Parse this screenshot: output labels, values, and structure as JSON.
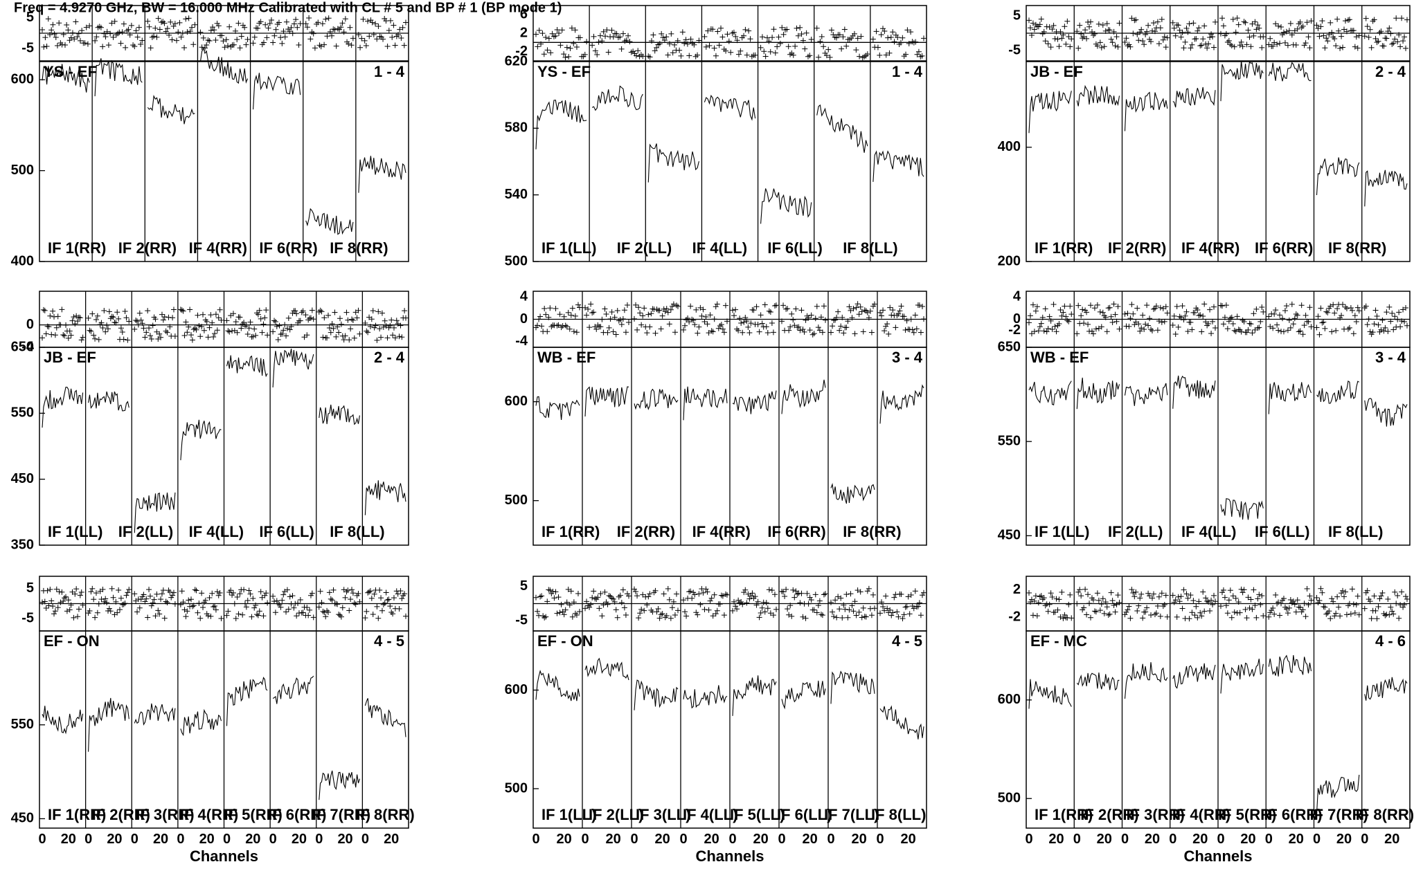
{
  "header": "Freq = 4.9270 GHz, BW = 16.000 MHz  Calibrated with CL # 5 and BP # 1  (BP mode 1)",
  "xlabel": "Channels",
  "x_tick_labels": [
    "0",
    "20"
  ],
  "n_channels": 32,
  "chart_data": [
    {
      "type": "line",
      "panel": 1,
      "baseline": "YS - EF",
      "scan": "1 - 4",
      "resid_ticks": [
        "5",
        "-5"
      ],
      "resid_range": [
        -9,
        9
      ],
      "amp_ticks": [
        "400",
        "500",
        "600"
      ],
      "amp_range": [
        400,
        620
      ],
      "if_labels": [
        "IF 1(RR)",
        "IF 2(RR)",
        "IF 4(RR)",
        "IF 6(RR)",
        "IF 8(RR)"
      ],
      "series": [
        {
          "values": [
            605,
            604,
            608,
            600,
            596
          ]
        },
        {
          "values": [
            615,
            612,
            608,
            606,
            604
          ]
        },
        {
          "values": [
            575,
            570,
            566,
            562,
            556
          ]
        },
        {
          "values": [
            625,
            620,
            614,
            608,
            602
          ]
        },
        {
          "values": [
            600,
            598,
            596,
            594,
            592
          ]
        },
        {
          "values": [
            450,
            446,
            442,
            440,
            438
          ]
        },
        {
          "values": [
            508,
            506,
            504,
            502,
            500
          ]
        }
      ]
    },
    {
      "type": "line",
      "panel": 2,
      "baseline": "YS - EF",
      "scan": "1 - 4",
      "resid_ticks": [
        "6",
        "2",
        "-2"
      ],
      "resid_range": [
        -4,
        8
      ],
      "amp_ticks": [
        "500",
        "540",
        "580",
        "620"
      ],
      "amp_range": [
        500,
        620
      ],
      "if_labels": [
        "IF 1(LL)",
        "IF 2(LL)",
        "IF 4(LL)",
        "IF 6(LL)",
        "IF 8(LL)"
      ],
      "series": [
        {
          "values": [
            585,
            590,
            592,
            590,
            588
          ]
        },
        {
          "values": [
            595,
            598,
            600,
            598,
            596
          ]
        },
        {
          "values": [
            565,
            565,
            562,
            560,
            560
          ]
        },
        {
          "values": [
            598,
            596,
            594,
            592,
            590
          ]
        },
        {
          "values": [
            540,
            538,
            536,
            534,
            532
          ]
        },
        {
          "values": [
            590,
            585,
            580,
            575,
            570
          ]
        },
        {
          "values": [
            565,
            562,
            560,
            558,
            556
          ]
        }
      ]
    },
    {
      "type": "line",
      "panel": 3,
      "baseline": "JB - EF",
      "scan": "2 - 4",
      "resid_ticks": [
        "5",
        "-5"
      ],
      "resid_range": [
        -8,
        8
      ],
      "amp_ticks": [
        "200",
        "400"
      ],
      "amp_range": [
        200,
        550
      ],
      "if_labels": [
        "IF 1(RR)",
        "IF 2(RR)",
        "IF 4(RR)",
        "IF 6(RR)",
        "IF 8(RR)"
      ],
      "series": [
        {
          "values": [
            475,
            478,
            480,
            482,
            484
          ]
        },
        {
          "values": [
            488,
            490,
            492,
            490,
            488
          ]
        },
        {
          "values": [
            478,
            480,
            482,
            480,
            478
          ]
        },
        {
          "values": [
            486,
            488,
            490,
            490,
            488
          ]
        },
        {
          "values": [
            530,
            532,
            534,
            532,
            530
          ]
        },
        {
          "values": [
            530,
            532,
            534,
            532,
            530
          ]
        },
        {
          "values": [
            365,
            366,
            366,
            365,
            364
          ]
        },
        {
          "values": [
            345,
            346,
            346,
            344,
            340
          ]
        }
      ]
    },
    {
      "type": "line",
      "panel": 4,
      "baseline": "JB - EF",
      "scan": "2 - 4",
      "resid_ticks": [
        "0",
        "-4"
      ],
      "resid_range": [
        -4,
        6
      ],
      "amp_ticks": [
        "350",
        "450",
        "550",
        "650"
      ],
      "amp_range": [
        350,
        650
      ],
      "if_labels": [
        "IF 1(LL)",
        "IF 2(LL)",
        "IF 4(LL)",
        "IF 6(LL)",
        "IF 8(LL)"
      ],
      "series": [
        {
          "values": [
            570,
            572,
            574,
            576,
            578
          ]
        },
        {
          "values": [
            570,
            568,
            568,
            568,
            566
          ]
        },
        {
          "values": [
            410,
            412,
            414,
            416,
            418
          ]
        },
        {
          "values": [
            520,
            524,
            526,
            526,
            524
          ]
        },
        {
          "values": [
            625,
            624,
            624,
            622,
            620
          ]
        },
        {
          "values": [
            630,
            632,
            634,
            632,
            630
          ]
        },
        {
          "values": [
            546,
            548,
            548,
            548,
            548
          ]
        },
        {
          "values": [
            436,
            434,
            432,
            430,
            428
          ]
        }
      ]
    },
    {
      "type": "line",
      "panel": 5,
      "baseline": "WB - EF",
      "scan": "3 - 4",
      "resid_ticks": [
        "4",
        "0",
        "-4"
      ],
      "resid_range": [
        -5,
        5
      ],
      "amp_ticks": [
        "500",
        "600"
      ],
      "amp_range": [
        455,
        655
      ],
      "if_labels": [
        "IF 1(RR)",
        "IF 2(RR)",
        "IF 4(RR)",
        "IF 6(RR)",
        "IF 8(RR)"
      ],
      "series": [
        {
          "values": [
            598,
            592,
            590,
            594,
            600
          ]
        },
        {
          "values": [
            612,
            606,
            604,
            604,
            606
          ]
        },
        {
          "values": [
            600,
            602,
            604,
            602,
            600
          ]
        },
        {
          "values": [
            608,
            606,
            604,
            602,
            604
          ]
        },
        {
          "values": [
            600,
            598,
            596,
            600,
            604
          ]
        },
        {
          "values": [
            614,
            606,
            602,
            606,
            614
          ]
        },
        {
          "values": [
            514,
            508,
            504,
            510,
            518
          ]
        },
        {
          "values": [
            604,
            600,
            598,
            602,
            608
          ]
        }
      ]
    },
    {
      "type": "line",
      "panel": 6,
      "baseline": "WB - EF",
      "scan": "3 - 4",
      "resid_ticks": [
        "4",
        "0",
        "-2"
      ],
      "resid_range": [
        -5,
        5
      ],
      "amp_ticks": [
        "450",
        "550",
        "650"
      ],
      "amp_range": [
        440,
        650
      ],
      "if_labels": [
        "IF 1(LL)",
        "IF 2(LL)",
        "IF 4(LL)",
        "IF 6(LL)",
        "IF 8(LL)"
      ],
      "series": [
        {
          "values": [
            606,
            600,
            598,
            600,
            604
          ]
        },
        {
          "values": [
            612,
            604,
            600,
            604,
            608
          ]
        },
        {
          "values": [
            600,
            598,
            596,
            600,
            604
          ]
        },
        {
          "values": [
            612,
            610,
            606,
            604,
            606
          ]
        },
        {
          "values": [
            484,
            478,
            476,
            476,
            478
          ]
        },
        {
          "values": [
            606,
            604,
            602,
            604,
            608
          ]
        },
        {
          "values": [
            600,
            598,
            600,
            604,
            606
          ]
        },
        {
          "values": [
            594,
            584,
            576,
            578,
            590
          ]
        }
      ]
    },
    {
      "type": "line",
      "panel": 7,
      "baseline": "EF - ON",
      "scan": "4 - 5",
      "resid_ticks": [
        "5",
        "-5"
      ],
      "resid_range": [
        -9,
        9
      ],
      "amp_ticks": [
        "450",
        "550"
      ],
      "amp_range": [
        440,
        650
      ],
      "if_labels": [
        "IF 1(RR)",
        "IF 2(RR)",
        "IF 3(RR)",
        "IF 4(RR)",
        "IF 5(RR)",
        "IF 6(RR)",
        "IF 7(RR)",
        "IF 8(RR)"
      ],
      "series": [
        {
          "values": [
            562,
            556,
            550,
            552,
            558
          ]
        },
        {
          "values": [
            548,
            560,
            570,
            565,
            560
          ]
        },
        {
          "values": [
            552,
            560,
            566,
            562,
            558
          ]
        },
        {
          "values": [
            546,
            552,
            556,
            554,
            552
          ]
        },
        {
          "values": [
            575,
            582,
            588,
            590,
            592
          ]
        },
        {
          "values": [
            578,
            584,
            590,
            592,
            594
          ]
        },
        {
          "values": [
            496,
            492,
            490,
            490,
            492
          ]
        },
        {
          "values": [
            570,
            566,
            560,
            552,
            544
          ]
        }
      ]
    },
    {
      "type": "line",
      "panel": 8,
      "baseline": "EF - ON",
      "scan": "4 - 5",
      "resid_ticks": [
        "5",
        "-5"
      ],
      "resid_range": [
        -8,
        8
      ],
      "amp_ticks": [
        "500",
        "600"
      ],
      "amp_range": [
        460,
        660
      ],
      "if_labels": [
        "IF 1(LL)",
        "IF 2(LL)",
        "IF 3(LL)",
        "IF 4(LL)",
        "IF 5(LL)",
        "IF 6(LL)",
        "IF 7(LL)",
        "IF 8(LL)"
      ],
      "series": [
        {
          "values": [
            615,
            612,
            604,
            598,
            596
          ]
        },
        {
          "values": [
            620,
            622,
            624,
            622,
            620
          ]
        },
        {
          "values": [
            604,
            596,
            592,
            594,
            598
          ]
        },
        {
          "values": [
            590,
            592,
            594,
            596,
            598
          ]
        },
        {
          "values": [
            598,
            602,
            606,
            604,
            600
          ]
        },
        {
          "values": [
            590,
            594,
            598,
            600,
            600
          ]
        },
        {
          "values": [
            610,
            612,
            610,
            606,
            602
          ]
        },
        {
          "values": [
            580,
            574,
            566,
            560,
            556
          ]
        }
      ]
    },
    {
      "type": "line",
      "panel": 9,
      "baseline": "EF - MC",
      "scan": "4 - 6",
      "resid_ticks": [
        "2",
        "-2"
      ],
      "resid_range": [
        -4,
        4
      ],
      "amp_ticks": [
        "500",
        "600"
      ],
      "amp_range": [
        470,
        670
      ],
      "if_labels": [
        "IF 1(RR)",
        "IF 2(RR)",
        "IF 3(RR)",
        "IF 4(RR)",
        "IF 5(RR)",
        "IF 6(RR)",
        "IF 7(RR)",
        "IF 8(RR)"
      ],
      "series": [
        {
          "values": [
            615,
            610,
            606,
            604,
            602
          ]
        },
        {
          "values": [
            616,
            618,
            620,
            618,
            616
          ]
        },
        {
          "values": [
            625,
            628,
            630,
            628,
            626
          ]
        },
        {
          "values": [
            620,
            624,
            628,
            628,
            626
          ]
        },
        {
          "values": [
            630,
            628,
            626,
            630,
            634
          ]
        },
        {
          "values": [
            632,
            634,
            636,
            636,
            634
          ]
        },
        {
          "values": [
            508,
            510,
            512,
            514,
            516
          ]
        },
        {
          "values": [
            604,
            608,
            612,
            614,
            616
          ]
        }
      ]
    }
  ]
}
